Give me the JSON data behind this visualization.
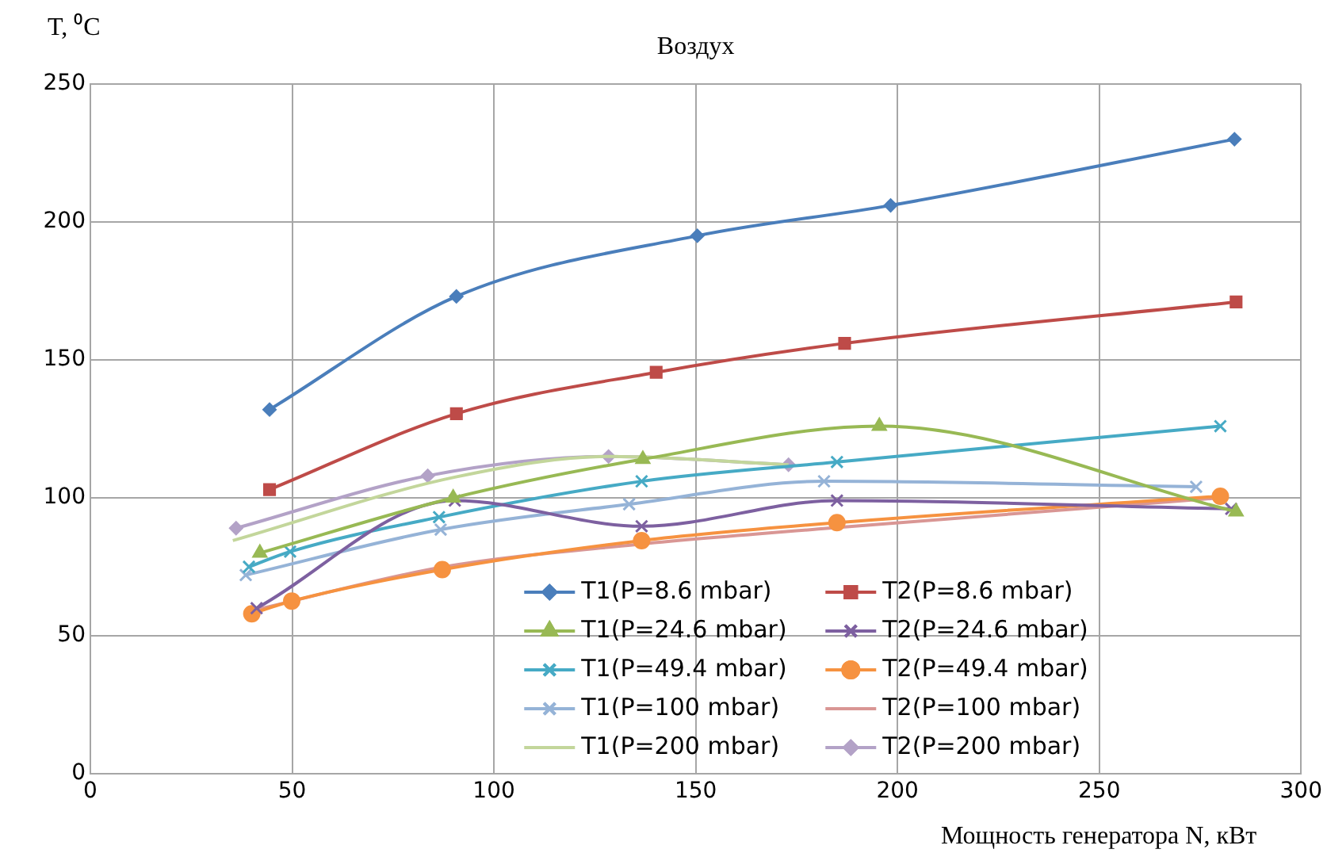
{
  "chart_data": {
    "type": "line",
    "title": "Воздух",
    "ylabel": "T, ⁰C",
    "xlabel": "Мощность генератора N, кВт",
    "xlim": [
      0,
      300
    ],
    "xticks": [
      0,
      50,
      100,
      150,
      200,
      250,
      300
    ],
    "ylim": [
      0,
      250
    ],
    "yticks": [
      0,
      50,
      100,
      150,
      200,
      250
    ],
    "grid": true,
    "legend": "bottom right",
    "line_style": "solid",
    "series": [
      {
        "name": "T1(P=8.6 mbar)",
        "color": "#4a7ebb",
        "marker": "diamond",
        "x": [
          44.4,
          90.7,
          150.4,
          198.3,
          283.5
        ],
        "values": [
          132,
          173,
          195,
          206,
          230
        ]
      },
      {
        "name": "T2(P=8.6 mbar)",
        "color": "#be4b48",
        "marker": "square",
        "x": [
          44.4,
          90.7,
          140.2,
          186.9,
          283.9
        ],
        "values": [
          103,
          130.5,
          145.5,
          156,
          171
        ]
      },
      {
        "name": "T1(P=24.6 mbar)",
        "color": "#98b954",
        "marker": "triangle",
        "x": [
          42,
          89.9,
          136.9,
          195.5,
          283.9
        ],
        "values": [
          80,
          100,
          114,
          126,
          95
        ]
      },
      {
        "name": "T2(P=24.6 mbar)",
        "color": "#7d60a0",
        "marker": "cross",
        "x": [
          41.2,
          90.3,
          136.6,
          185,
          282.7
        ],
        "values": [
          60,
          99,
          89.7,
          99,
          96
        ]
      },
      {
        "name": "T1(P=49.4 mbar)",
        "color": "#46aac5",
        "marker": "cross",
        "x": [
          39.3,
          49.5,
          86.4,
          136.6,
          185,
          280
        ],
        "values": [
          75,
          80.5,
          93,
          106,
          113,
          126
        ]
      },
      {
        "name": "T2(P=49.4 mbar)",
        "color": "#f69240",
        "marker": "circle",
        "x": [
          40,
          49.9,
          87.2,
          136.6,
          185,
          280
        ],
        "values": [
          58,
          62.6,
          74,
          84.5,
          91,
          100.6
        ]
      },
      {
        "name": "T1(P=100 mbar)",
        "color": "#95b3d7",
        "marker": "cross",
        "x": [
          38.5,
          86.8,
          133.5,
          181.8,
          274
        ],
        "values": [
          72,
          88.5,
          97.7,
          106,
          104
        ]
      },
      {
        "name": "T2(P=100 mbar)",
        "color": "#d99694",
        "marker": "none",
        "x": [
          39.7,
          87.6,
          134.7,
          183,
          280
        ],
        "values": [
          59,
          75,
          83,
          89,
          100
        ]
      },
      {
        "name": "T1(P=200 mbar)",
        "color": "#c3d69b",
        "marker": "none",
        "x": [
          35.3,
          90.3,
          128.8,
          173
        ],
        "values": [
          84.5,
          107.5,
          115,
          112
        ]
      },
      {
        "name": "T2(P=200 mbar)",
        "color": "#b3a2c7",
        "marker": "diamond",
        "x": [
          36.1,
          83.6,
          128.4,
          173
        ],
        "values": [
          89,
          108,
          115,
          112
        ]
      }
    ]
  }
}
